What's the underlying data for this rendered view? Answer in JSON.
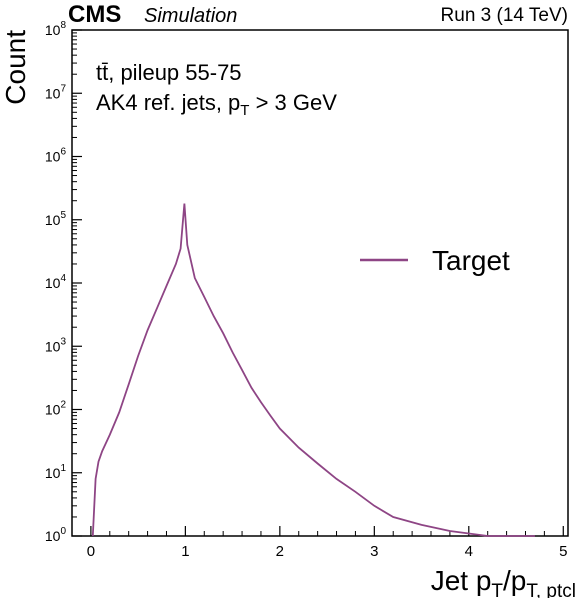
{
  "header": {
    "experiment": "CMS",
    "subtitle": "Simulation",
    "run_info": "Run 3 (14 TeV)"
  },
  "annotations": {
    "line1": "tt̄, pileup 55-75",
    "line2_prefix": "AK4 ref. jets, p",
    "line2_sub": "T",
    "line2_suffix": " > 3 GeV"
  },
  "colors": {
    "series": "#8e4585",
    "axis": "#000000"
  },
  "chart_data": {
    "type": "line",
    "style": "step-histogram",
    "title": "",
    "xlabel": "Jet pT/pT, ptcl",
    "xlabel_parts": {
      "main": "Jet p",
      "sub1": "T",
      "mid": "/p",
      "sub2": "T, ptcl"
    },
    "ylabel": "Count",
    "xlim": [
      -0.2,
      5.05
    ],
    "ylim": [
      1,
      100000000
    ],
    "yscale": "log",
    "grid": false,
    "legend_position": "right",
    "x_ticks": [
      "0",
      "1",
      "2",
      "3",
      "4",
      "5"
    ],
    "y_ticks": [
      {
        "base": "10",
        "exp": "0"
      },
      {
        "base": "10",
        "exp": "1"
      },
      {
        "base": "10",
        "exp": "2"
      },
      {
        "base": "10",
        "exp": "3"
      },
      {
        "base": "10",
        "exp": "4"
      },
      {
        "base": "10",
        "exp": "5"
      },
      {
        "base": "10",
        "exp": "6"
      },
      {
        "base": "10",
        "exp": "7"
      },
      {
        "base": "10",
        "exp": "8"
      }
    ],
    "series": [
      {
        "name": "Target",
        "color": "#8e4585",
        "points": [
          [
            0.02,
            1
          ],
          [
            0.05,
            8
          ],
          [
            0.08,
            15
          ],
          [
            0.12,
            22
          ],
          [
            0.2,
            40
          ],
          [
            0.3,
            90
          ],
          [
            0.4,
            250
          ],
          [
            0.5,
            700
          ],
          [
            0.6,
            1800
          ],
          [
            0.7,
            4000
          ],
          [
            0.8,
            9000
          ],
          [
            0.9,
            20000
          ],
          [
            0.95,
            35000
          ],
          [
            0.99,
            180000
          ],
          [
            1.02,
            40000
          ],
          [
            1.1,
            12000
          ],
          [
            1.2,
            6000
          ],
          [
            1.3,
            3000
          ],
          [
            1.4,
            1600
          ],
          [
            1.5,
            800
          ],
          [
            1.6,
            420
          ],
          [
            1.7,
            220
          ],
          [
            1.8,
            130
          ],
          [
            1.9,
            80
          ],
          [
            2.0,
            50
          ],
          [
            2.2,
            25
          ],
          [
            2.4,
            14
          ],
          [
            2.6,
            8
          ],
          [
            2.8,
            5
          ],
          [
            3.0,
            3
          ],
          [
            3.2,
            2
          ],
          [
            3.5,
            1.5
          ],
          [
            3.8,
            1.2
          ],
          [
            4.2,
            1
          ],
          [
            4.6,
            1
          ],
          [
            4.7,
            1
          ]
        ]
      }
    ]
  }
}
